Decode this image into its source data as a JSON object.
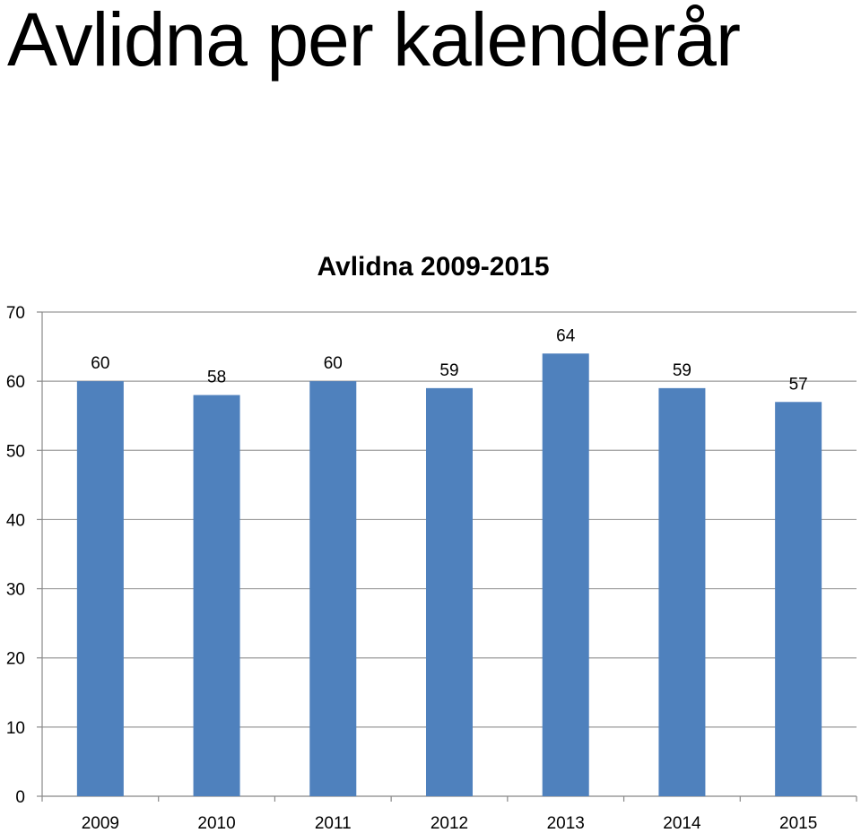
{
  "page": {
    "title": "Avlidna per kalenderår"
  },
  "colors": {
    "bar": "#4f81bd",
    "grid": "#999999",
    "axis": "#888888"
  },
  "chart_data": {
    "type": "bar",
    "title": "Avlidna 2009-2015",
    "xlabel": "",
    "ylabel": "",
    "categories": [
      "2009",
      "2010",
      "2011",
      "2012",
      "2013",
      "2014",
      "2015"
    ],
    "values": [
      60,
      58,
      60,
      59,
      64,
      59,
      57
    ],
    "data_labels": [
      "60",
      "58",
      "60",
      "59",
      "64",
      "59",
      "57"
    ],
    "ylim": [
      0,
      70
    ],
    "yticks": [
      0,
      10,
      20,
      30,
      40,
      50,
      60,
      70
    ],
    "ytick_labels": [
      "0",
      "10",
      "20",
      "30",
      "40",
      "50",
      "60",
      "70"
    ],
    "grid": true,
    "legend": "none"
  }
}
